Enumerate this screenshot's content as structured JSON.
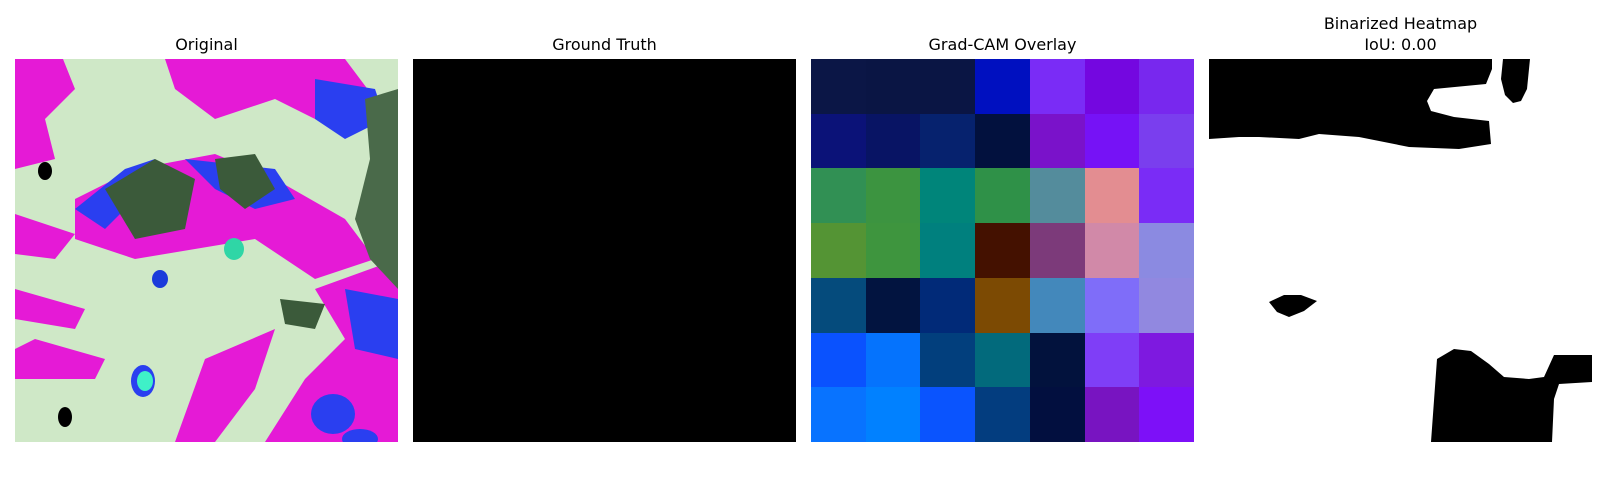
{
  "panels": {
    "original": {
      "title": "Original"
    },
    "ground_truth": {
      "title": "Ground Truth"
    },
    "gradcam": {
      "title": "Grad-CAM Overlay",
      "grid_colors": [
        [
          "#0b1646",
          "#0a1544",
          "#0a1544",
          "#0010c0",
          "#7a2cf6",
          "#7407e0",
          "#7828ee"
        ],
        [
          "#0b1278",
          "#081464",
          "#06226e",
          "#02113e",
          "#7a12ca",
          "#7612f6",
          "#7a3eee"
        ],
        [
          "#319054",
          "#3c9440",
          "#00857a",
          "#2f9148",
          "#548c9c",
          "#e38d91",
          "#7a2cf6"
        ],
        [
          "#549434",
          "#3e953e",
          "#00807e",
          "#441100",
          "#7c3a7a",
          "#d189a8",
          "#8b8ae1"
        ],
        [
          "#054b7c",
          "#021440",
          "#012a78",
          "#7c4a03",
          "#4388bb",
          "#7f6df9",
          "#9188e0"
        ],
        [
          "#0a52fe",
          "#0573fd",
          "#023f7d",
          "#026a7c",
          "#02123d",
          "#7f3ef7",
          "#7e19e0"
        ],
        [
          "#0873ff",
          "#0181ff",
          "#0a54fe",
          "#033d7f",
          "#020f3f",
          "#7814c1",
          "#7d10f8"
        ]
      ]
    },
    "binarized": {
      "title_line1": "Binarized Heatmap",
      "title_line2": "IoU: 0.00"
    }
  }
}
